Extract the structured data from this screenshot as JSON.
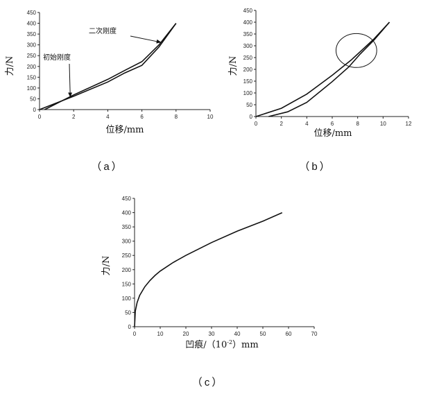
{
  "chart_data": [
    {
      "id": "a",
      "type": "line",
      "panel_label": "（a）",
      "xlabel": "位移/mm",
      "ylabel": "力/N",
      "xlim": [
        0,
        10
      ],
      "ylim": [
        0,
        450
      ],
      "xticks": [
        0,
        2,
        4,
        6,
        8,
        10
      ],
      "yticks": [
        0,
        50,
        100,
        150,
        200,
        250,
        300,
        350,
        400,
        450
      ],
      "series": [
        {
          "x": [
            0.3,
            2,
            4,
            5,
            6,
            7,
            8
          ],
          "y": [
            0,
            68,
            140,
            182,
            222,
            300,
            400
          ]
        },
        {
          "x": [
            0,
            2,
            4,
            5,
            6,
            7,
            8
          ],
          "y": [
            0,
            62,
            128,
            170,
            205,
            290,
            400
          ]
        }
      ],
      "annotations": [
        {
          "text": "二次刚度",
          "point_x": 7.1,
          "point_y": 312
        },
        {
          "text": "初始刚度",
          "point_x": 1.8,
          "point_y": 60
        }
      ]
    },
    {
      "id": "b",
      "type": "line",
      "panel_label": "（b）",
      "xlabel": "位移/mm",
      "ylabel": "力/N",
      "xlim": [
        0,
        12
      ],
      "ylim": [
        0,
        450
      ],
      "xticks": [
        0,
        2,
        4,
        6,
        8,
        10,
        12
      ],
      "yticks": [
        0,
        50,
        100,
        150,
        200,
        250,
        300,
        350,
        400,
        450
      ],
      "series": [
        {
          "x": [
            0,
            2,
            4,
            6,
            7.5,
            8.3,
            9.3,
            10.5
          ],
          "y": [
            0,
            35,
            95,
            175,
            240,
            280,
            330,
            400
          ]
        },
        {
          "x": [
            1,
            2.5,
            4,
            6,
            7.3,
            8.2,
            9.3,
            10.5
          ],
          "y": [
            0,
            20,
            60,
            148,
            210,
            265,
            325,
            400
          ]
        }
      ],
      "highlight_circle": {
        "cx": 7.9,
        "cy": 280,
        "rx": 1.6,
        "ry": 72
      }
    },
    {
      "id": "c",
      "type": "line",
      "panel_label": "（c）",
      "xlabel": "凹痕/（10",
      "xlabel_sup": "-2",
      "xlabel_tail": "）mm",
      "ylabel": "力/N",
      "xlim": [
        0,
        70
      ],
      "ylim": [
        0,
        450
      ],
      "xticks": [
        0,
        10,
        20,
        30,
        40,
        50,
        60,
        70
      ],
      "yticks": [
        0,
        50,
        100,
        150,
        200,
        250,
        300,
        350,
        400,
        450
      ],
      "series": [
        {
          "x": [
            0,
            0.3,
            1,
            2,
            4,
            6,
            8,
            10,
            15,
            20,
            30,
            40,
            50,
            57.5
          ],
          "y": [
            0,
            55,
            85,
            110,
            140,
            162,
            180,
            195,
            225,
            250,
            295,
            335,
            370,
            400
          ]
        }
      ]
    }
  ]
}
